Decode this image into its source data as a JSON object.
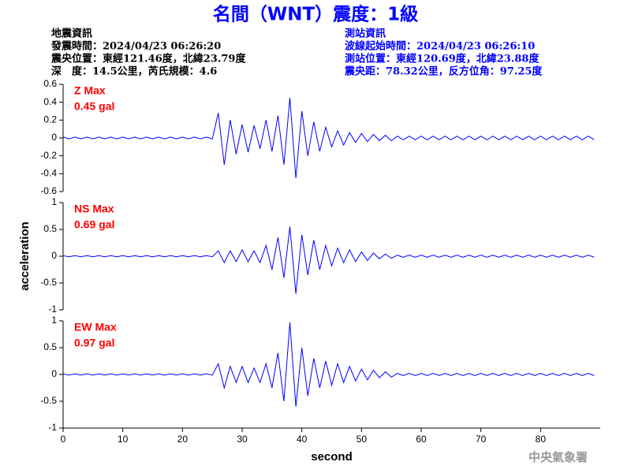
{
  "title": "名間（WNT）震度：1級",
  "info": {
    "left": [
      "地震資訊",
      "發震時間：2024/04/23 06:26:20",
      "震央位置：東經121.46度，北緯23.79度",
      "深　度：14.5公里，芮氏規模：4.6"
    ],
    "right": [
      "測站資訊",
      "波線起始時間：2024/04/23 06:26:10",
      "測站位置：東經120.69度，北緯23.88度",
      "震央距：78.32公里，反方位角：97.25度"
    ]
  },
  "watermark": "中央氣象署",
  "chart_data": [
    {
      "type": "line",
      "annotations": [
        "Z Max",
        "0.45 gal"
      ],
      "annotation_color": "#ff0000",
      "color": "#0000ff",
      "xlim": [
        0,
        90
      ],
      "ylim": [
        -0.6,
        0.6
      ],
      "yticks": [
        0.6,
        0.4,
        0.2,
        0,
        -0.2,
        -0.4,
        -0.6
      ],
      "x": [
        0,
        1,
        2,
        3,
        4,
        5,
        6,
        7,
        8,
        9,
        10,
        11,
        12,
        13,
        14,
        15,
        16,
        17,
        18,
        19,
        20,
        21,
        22,
        23,
        24,
        25,
        26,
        27,
        28,
        29,
        30,
        31,
        32,
        33,
        34,
        35,
        36,
        37,
        38,
        39,
        40,
        41,
        42,
        43,
        44,
        45,
        46,
        47,
        48,
        49,
        50,
        51,
        52,
        53,
        54,
        55,
        56,
        57,
        58,
        59,
        60,
        61,
        62,
        63,
        64,
        65,
        66,
        67,
        68,
        69,
        70,
        71,
        72,
        73,
        74,
        75,
        76,
        77,
        78,
        79,
        80,
        81,
        82,
        83,
        84,
        85,
        86,
        87,
        88,
        89
      ],
      "values": [
        0.01,
        -0.01,
        0.01,
        -0.01,
        0.01,
        -0.01,
        0.01,
        -0.01,
        0.01,
        -0.01,
        0.01,
        -0.01,
        0.01,
        -0.01,
        0.01,
        -0.01,
        0.01,
        -0.01,
        0.01,
        -0.01,
        0.01,
        -0.01,
        0.01,
        -0.01,
        0.01,
        -0.01,
        0.28,
        -0.3,
        0.2,
        -0.18,
        0.15,
        -0.16,
        0.14,
        -0.12,
        0.2,
        -0.15,
        0.25,
        -0.3,
        0.45,
        -0.45,
        0.3,
        -0.2,
        0.18,
        -0.15,
        0.12,
        -0.1,
        0.08,
        -0.08,
        0.06,
        -0.05,
        0.05,
        -0.04,
        0.04,
        -0.03,
        0.03,
        -0.03,
        0.02,
        -0.02,
        0.02,
        -0.02,
        0.02,
        -0.02,
        0.02,
        -0.02,
        0.02,
        -0.02,
        0.02,
        -0.02,
        0.02,
        -0.02,
        0.02,
        -0.02,
        0.02,
        -0.02,
        0.02,
        -0.02,
        0.02,
        -0.02,
        0.02,
        -0.02,
        0.02,
        -0.02,
        0.02,
        -0.02,
        0.02,
        -0.02,
        0.02,
        -0.02,
        0.02,
        -0.02
      ]
    },
    {
      "type": "line",
      "annotations": [
        "NS Max",
        "0.69 gal"
      ],
      "annotation_color": "#ff0000",
      "color": "#0000ff",
      "ylabel": "acceleration",
      "xlim": [
        0,
        90
      ],
      "ylim": [
        -1,
        1
      ],
      "yticks": [
        1,
        0.5,
        0,
        -0.5,
        -1
      ],
      "x": [
        0,
        1,
        2,
        3,
        4,
        5,
        6,
        7,
        8,
        9,
        10,
        11,
        12,
        13,
        14,
        15,
        16,
        17,
        18,
        19,
        20,
        21,
        22,
        23,
        24,
        25,
        26,
        27,
        28,
        29,
        30,
        31,
        32,
        33,
        34,
        35,
        36,
        37,
        38,
        39,
        40,
        41,
        42,
        43,
        44,
        45,
        46,
        47,
        48,
        49,
        50,
        51,
        52,
        53,
        54,
        55,
        56,
        57,
        58,
        59,
        60,
        61,
        62,
        63,
        64,
        65,
        66,
        67,
        68,
        69,
        70,
        71,
        72,
        73,
        74,
        75,
        76,
        77,
        78,
        79,
        80,
        81,
        82,
        83,
        84,
        85,
        86,
        87,
        88,
        89
      ],
      "values": [
        0.01,
        -0.01,
        0.01,
        -0.01,
        0.01,
        -0.01,
        0.01,
        -0.01,
        0.01,
        -0.01,
        0.01,
        -0.01,
        0.01,
        -0.01,
        0.01,
        -0.01,
        0.01,
        -0.01,
        0.01,
        -0.01,
        0.01,
        -0.01,
        0.01,
        -0.01,
        0.01,
        -0.01,
        0.1,
        -0.12,
        0.1,
        -0.1,
        0.12,
        -0.1,
        0.1,
        -0.12,
        0.2,
        -0.25,
        0.35,
        -0.4,
        0.55,
        -0.7,
        0.4,
        -0.35,
        0.3,
        -0.25,
        0.2,
        -0.18,
        0.15,
        -0.12,
        0.12,
        -0.1,
        0.08,
        -0.08,
        0.06,
        -0.05,
        0.04,
        -0.04,
        0.02,
        -0.02,
        0.02,
        -0.02,
        0.02,
        -0.02,
        0.02,
        -0.02,
        0.02,
        -0.02,
        0.02,
        -0.02,
        0.02,
        -0.02,
        0.02,
        -0.02,
        0.02,
        -0.02,
        0.02,
        -0.02,
        0.02,
        -0.02,
        0.02,
        -0.02,
        0.02,
        -0.02,
        0.02,
        -0.02,
        0.02,
        -0.02,
        0.02,
        -0.02,
        0.02,
        -0.02
      ]
    },
    {
      "type": "line",
      "annotations": [
        "EW Max",
        "0.97 gal"
      ],
      "annotation_color": "#ff0000",
      "color": "#0000ff",
      "xlabel": "second",
      "xlim": [
        0,
        90
      ],
      "ylim": [
        -1,
        1
      ],
      "yticks": [
        1,
        0.5,
        0,
        -0.5,
        -1
      ],
      "xticks": [
        0,
        10,
        20,
        30,
        40,
        50,
        60,
        70,
        80
      ],
      "x": [
        0,
        1,
        2,
        3,
        4,
        5,
        6,
        7,
        8,
        9,
        10,
        11,
        12,
        13,
        14,
        15,
        16,
        17,
        18,
        19,
        20,
        21,
        22,
        23,
        24,
        25,
        26,
        27,
        28,
        29,
        30,
        31,
        32,
        33,
        34,
        35,
        36,
        37,
        38,
        39,
        40,
        41,
        42,
        43,
        44,
        45,
        46,
        47,
        48,
        49,
        50,
        51,
        52,
        53,
        54,
        55,
        56,
        57,
        58,
        59,
        60,
        61,
        62,
        63,
        64,
        65,
        66,
        67,
        68,
        69,
        70,
        71,
        72,
        73,
        74,
        75,
        76,
        77,
        78,
        79,
        80,
        81,
        82,
        83,
        84,
        85,
        86,
        87,
        88,
        89
      ],
      "values": [
        0.01,
        -0.01,
        0.01,
        -0.01,
        0.01,
        -0.01,
        0.01,
        -0.01,
        0.01,
        -0.01,
        0.01,
        -0.01,
        0.01,
        -0.01,
        0.01,
        -0.01,
        0.01,
        -0.01,
        0.01,
        -0.01,
        0.01,
        -0.01,
        0.01,
        -0.01,
        0.01,
        -0.01,
        0.2,
        -0.25,
        0.15,
        -0.15,
        0.15,
        -0.15,
        0.12,
        -0.15,
        0.2,
        -0.25,
        0.4,
        -0.5,
        0.97,
        -0.6,
        0.5,
        -0.4,
        0.3,
        -0.25,
        0.25,
        -0.2,
        0.2,
        -0.15,
        0.15,
        -0.12,
        0.1,
        -0.1,
        0.08,
        -0.06,
        0.05,
        -0.05,
        0.02,
        -0.02,
        0.02,
        -0.02,
        0.02,
        -0.02,
        0.02,
        -0.02,
        0.02,
        -0.02,
        0.02,
        -0.02,
        0.02,
        -0.02,
        0.02,
        -0.02,
        0.02,
        -0.02,
        0.02,
        -0.02,
        0.02,
        -0.02,
        0.02,
        -0.02,
        0.02,
        -0.02,
        0.02,
        -0.02,
        0.02,
        -0.02,
        0.02,
        -0.02,
        0.02,
        -0.02
      ]
    }
  ]
}
